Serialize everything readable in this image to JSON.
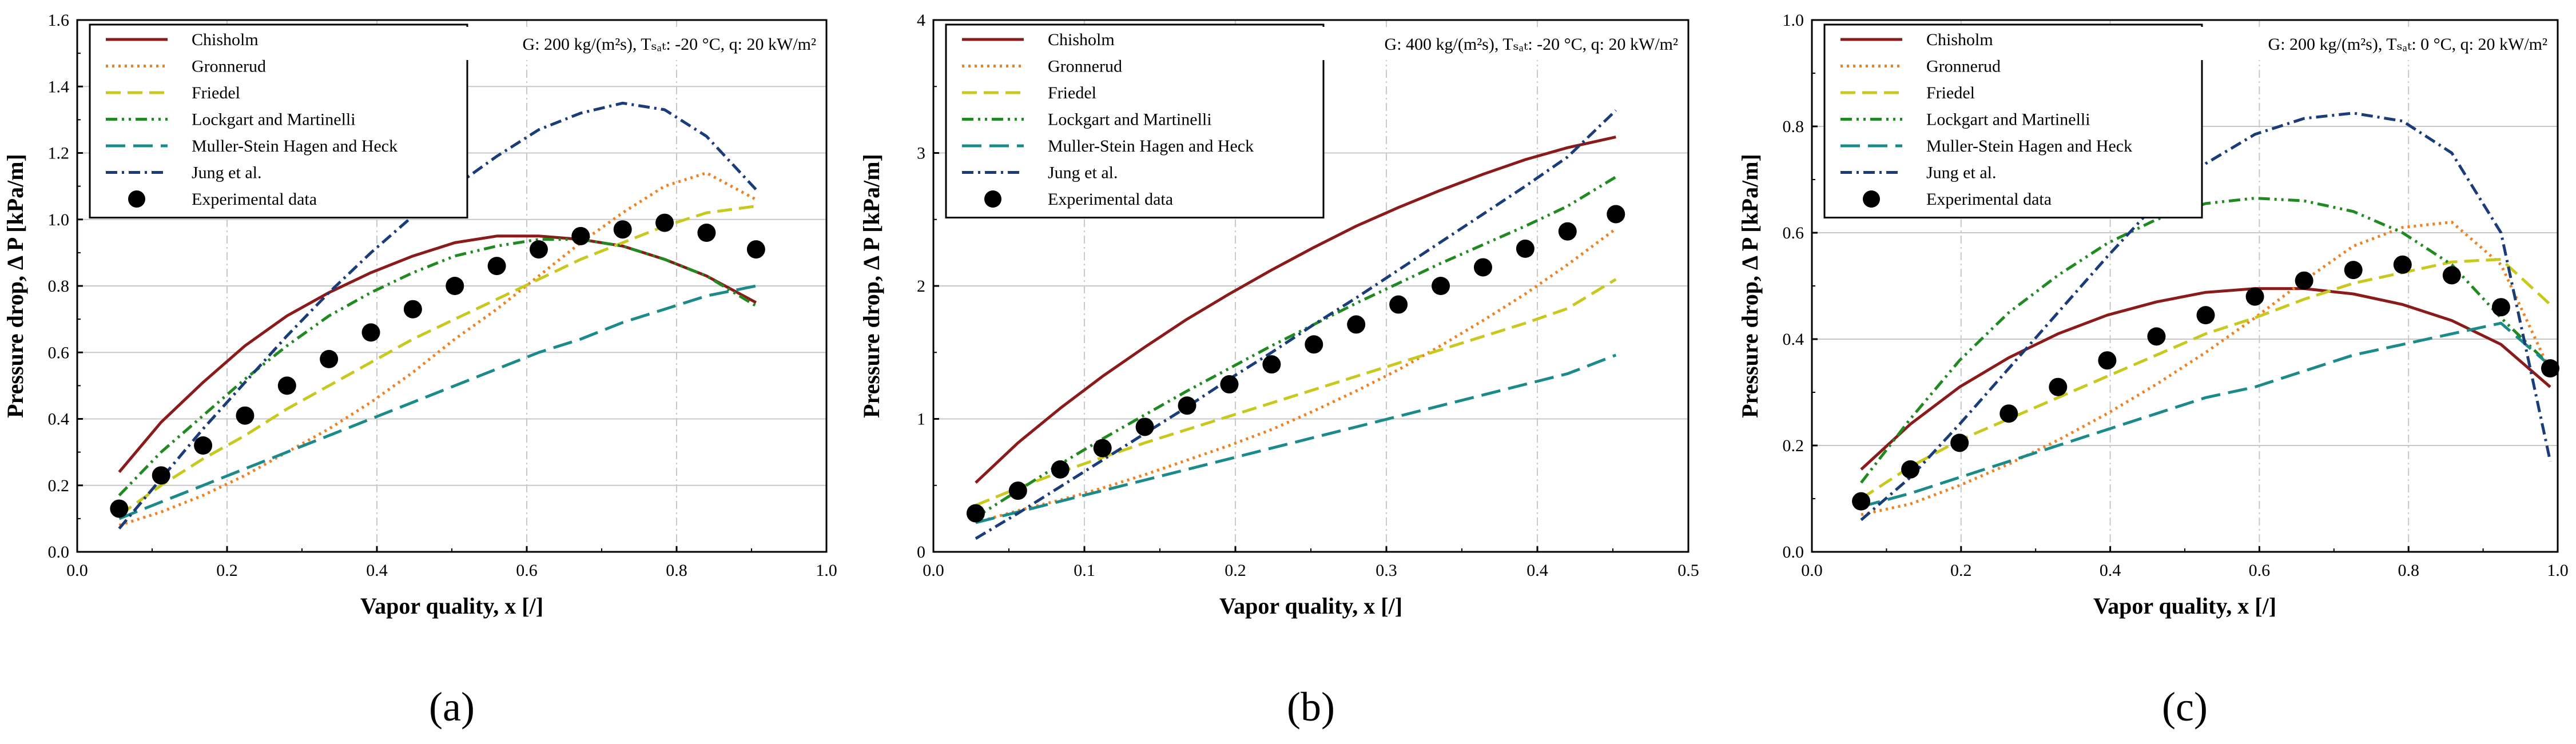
{
  "figure": {
    "styles": {
      "Chisholm": {
        "color": "#8b1a1a",
        "dash": ""
      },
      "Gronnerud": {
        "color": "#f08020",
        "dash": "4 7"
      },
      "Friedel": {
        "color": "#c8c81e",
        "dash": "26 12"
      },
      "Lockgart and Martinelli": {
        "color": "#208a20",
        "dash": "20 8 4 8 4 8"
      },
      "Muller-Stein Hagen and Heck": {
        "color": "#1a8a8a",
        "dash": "34 14"
      },
      "Jung et al.": {
        "color": "#1a3c78",
        "dash": "20 8 4 8"
      }
    },
    "marker_color": "#000000"
  },
  "chart_data": [
    {
      "type": "line",
      "panel_label": "(a)",
      "condition_text": "G: 200 kg/(m²s), Tₛₐₜ: -20 °C, q: 20 kW/m²",
      "xlabel": "Vapor quality, x [/]",
      "ylabel": "Pressure drop, Δ P [kPa/m]",
      "xlim": [
        0,
        1
      ],
      "ylim": [
        0,
        1.6
      ],
      "xticks": [
        0.0,
        0.2,
        0.4,
        0.6,
        0.8,
        1.0
      ],
      "xtick_labels": [
        "0.0",
        "0.2",
        "0.4",
        "0.6",
        "0.8",
        "1.0"
      ],
      "yticks": [
        0.0,
        0.2,
        0.4,
        0.6,
        0.8,
        1.0,
        1.2,
        1.4,
        1.6
      ],
      "ytick_labels": [
        "0.0",
        "0.2",
        "0.4",
        "0.6",
        "0.8",
        "1.0",
        "1.2",
        "1.4",
        "1.6"
      ],
      "grid": true,
      "legend": "top-left",
      "x": [
        0.056,
        0.112,
        0.168,
        0.224,
        0.28,
        0.336,
        0.392,
        0.448,
        0.504,
        0.56,
        0.616,
        0.672,
        0.728,
        0.784,
        0.84,
        0.906
      ],
      "series": [
        {
          "name": "Chisholm",
          "values": [
            0.24,
            0.39,
            0.51,
            0.62,
            0.71,
            0.78,
            0.84,
            0.89,
            0.93,
            0.95,
            0.95,
            0.94,
            0.92,
            0.88,
            0.83,
            0.75
          ]
        },
        {
          "name": "Gronnerud",
          "values": [
            0.08,
            0.12,
            0.17,
            0.23,
            0.3,
            0.37,
            0.45,
            0.54,
            0.64,
            0.73,
            0.83,
            0.93,
            1.02,
            1.1,
            1.14,
            1.06
          ]
        },
        {
          "name": "Friedel",
          "values": [
            0.11,
            0.2,
            0.28,
            0.35,
            0.43,
            0.5,
            0.57,
            0.64,
            0.7,
            0.76,
            0.82,
            0.88,
            0.93,
            0.98,
            1.02,
            1.04
          ]
        },
        {
          "name": "Lockgart and Martinelli",
          "values": [
            0.17,
            0.3,
            0.41,
            0.52,
            0.62,
            0.71,
            0.78,
            0.84,
            0.89,
            0.92,
            0.94,
            0.94,
            0.92,
            0.88,
            0.83,
            0.74
          ]
        },
        {
          "name": "Muller-Stein Hagen and Heck",
          "values": [
            0.1,
            0.15,
            0.2,
            0.25,
            0.3,
            0.35,
            0.4,
            0.45,
            0.5,
            0.55,
            0.6,
            0.64,
            0.69,
            0.73,
            0.77,
            0.8
          ]
        },
        {
          "name": "Jung et al.",
          "values": [
            0.07,
            0.22,
            0.37,
            0.51,
            0.65,
            0.78,
            0.9,
            1.01,
            1.1,
            1.19,
            1.27,
            1.32,
            1.35,
            1.33,
            1.25,
            1.09
          ]
        },
        {
          "name": "Experimental data",
          "kind": "scatter",
          "values": [
            0.13,
            0.23,
            0.32,
            0.41,
            0.5,
            0.58,
            0.66,
            0.73,
            0.8,
            0.86,
            0.91,
            0.95,
            0.97,
            0.99,
            0.96,
            0.91
          ]
        }
      ]
    },
    {
      "type": "line",
      "panel_label": "(b)",
      "condition_text": "G: 400 kg/(m²s), Tₛₐₜ: -20 °C, q: 20 kW/m²",
      "xlabel": "Vapor quality, x [/]",
      "ylabel": "Pressure drop, Δ P [kPa/m]",
      "xlim": [
        0,
        0.5
      ],
      "ylim": [
        0,
        4
      ],
      "xticks": [
        0.0,
        0.1,
        0.2,
        0.3,
        0.4,
        0.5
      ],
      "xtick_labels": [
        "0.0",
        "0.1",
        "0.2",
        "0.3",
        "0.4",
        "0.5"
      ],
      "yticks": [
        0,
        1,
        2,
        3,
        4
      ],
      "ytick_labels": [
        "0",
        "1",
        "2",
        "3",
        "4"
      ],
      "grid": true,
      "legend": "top-left",
      "x": [
        0.028,
        0.056,
        0.084,
        0.112,
        0.14,
        0.168,
        0.196,
        0.224,
        0.252,
        0.28,
        0.308,
        0.336,
        0.364,
        0.392,
        0.42,
        0.452
      ],
      "series": [
        {
          "name": "Chisholm",
          "values": [
            0.52,
            0.82,
            1.08,
            1.32,
            1.54,
            1.75,
            1.94,
            2.12,
            2.29,
            2.45,
            2.59,
            2.72,
            2.84,
            2.95,
            3.04,
            3.12
          ]
        },
        {
          "name": "Gronnerud",
          "values": [
            0.22,
            0.31,
            0.39,
            0.48,
            0.58,
            0.69,
            0.8,
            0.92,
            1.06,
            1.21,
            1.37,
            1.55,
            1.74,
            1.94,
            2.16,
            2.43
          ]
        },
        {
          "name": "Friedel",
          "values": [
            0.35,
            0.48,
            0.6,
            0.71,
            0.82,
            0.92,
            1.02,
            1.12,
            1.22,
            1.32,
            1.42,
            1.52,
            1.62,
            1.72,
            1.83,
            2.05
          ]
        },
        {
          "name": "Lockgart and Martinelli",
          "values": [
            0.26,
            0.46,
            0.66,
            0.85,
            1.03,
            1.21,
            1.38,
            1.55,
            1.71,
            1.87,
            2.02,
            2.17,
            2.31,
            2.45,
            2.6,
            2.82
          ]
        },
        {
          "name": "Muller-Stein Hagen and Heck",
          "values": [
            0.22,
            0.3,
            0.38,
            0.46,
            0.54,
            0.62,
            0.7,
            0.78,
            0.86,
            0.94,
            1.02,
            1.1,
            1.18,
            1.26,
            1.34,
            1.48
          ]
        },
        {
          "name": "Jung et al.",
          "values": [
            0.1,
            0.29,
            0.49,
            0.69,
            0.89,
            1.09,
            1.3,
            1.5,
            1.71,
            1.91,
            2.12,
            2.33,
            2.54,
            2.75,
            2.97,
            3.32
          ]
        },
        {
          "name": "Experimental data",
          "kind": "scatter",
          "values": [
            0.29,
            0.46,
            0.62,
            0.78,
            0.94,
            1.1,
            1.26,
            1.41,
            1.56,
            1.71,
            1.86,
            2.0,
            2.14,
            2.28,
            2.41,
            2.54
          ]
        }
      ]
    },
    {
      "type": "line",
      "panel_label": "(c)",
      "condition_text": "G: 200 kg/(m²s), Tₛₐₜ: 0 °C, q: 20 kW/m²",
      "xlabel": "Vapor quality, x [/]",
      "ylabel": "Pressure drop, Δ P [kPa/m]",
      "xlim": [
        0,
        1
      ],
      "ylim": [
        0,
        1.0
      ],
      "xticks": [
        0.0,
        0.2,
        0.4,
        0.6,
        0.8,
        1.0
      ],
      "xtick_labels": [
        "0.0",
        "0.2",
        "0.4",
        "0.6",
        "0.8",
        "1.0"
      ],
      "yticks": [
        0.0,
        0.2,
        0.4,
        0.6,
        0.8,
        1.0
      ],
      "ytick_labels": [
        "0.0",
        "0.2",
        "0.4",
        "0.6",
        "0.8",
        "1.0"
      ],
      "grid": true,
      "legend": "top-left",
      "x": [
        0.066,
        0.132,
        0.198,
        0.264,
        0.33,
        0.396,
        0.462,
        0.528,
        0.594,
        0.66,
        0.726,
        0.792,
        0.858,
        0.924,
        0.99
      ],
      "series": [
        {
          "name": "Chisholm",
          "values": [
            0.155,
            0.24,
            0.31,
            0.365,
            0.41,
            0.445,
            0.47,
            0.488,
            0.495,
            0.495,
            0.485,
            0.465,
            0.435,
            0.39,
            0.31
          ]
        },
        {
          "name": "Gronnerud",
          "values": [
            0.07,
            0.09,
            0.125,
            0.165,
            0.21,
            0.26,
            0.315,
            0.375,
            0.44,
            0.51,
            0.575,
            0.61,
            0.62,
            0.54,
            0.34
          ]
        },
        {
          "name": "Friedel",
          "values": [
            0.1,
            0.16,
            0.21,
            0.25,
            0.29,
            0.33,
            0.37,
            0.41,
            0.44,
            0.475,
            0.505,
            0.525,
            0.545,
            0.55,
            0.465
          ]
        },
        {
          "name": "Lockgart and Martinelli",
          "values": [
            0.13,
            0.25,
            0.36,
            0.45,
            0.52,
            0.58,
            0.625,
            0.655,
            0.665,
            0.66,
            0.64,
            0.6,
            0.54,
            0.44,
            0.35
          ]
        },
        {
          "name": "Muller-Stein Hagen and Heck",
          "values": [
            0.085,
            0.11,
            0.14,
            0.17,
            0.2,
            0.23,
            0.26,
            0.29,
            0.31,
            0.34,
            0.37,
            0.39,
            0.41,
            0.43,
            0.35
          ]
        },
        {
          "name": "Jung et al.",
          "values": [
            0.06,
            0.14,
            0.24,
            0.345,
            0.45,
            0.555,
            0.655,
            0.73,
            0.785,
            0.815,
            0.825,
            0.81,
            0.75,
            0.6,
            0.17
          ]
        },
        {
          "name": "Experimental data",
          "kind": "scatter",
          "values": [
            0.095,
            0.155,
            0.205,
            0.26,
            0.31,
            0.36,
            0.405,
            0.445,
            0.48,
            0.51,
            0.53,
            0.54,
            0.52,
            0.46,
            0.345
          ]
        }
      ]
    }
  ]
}
